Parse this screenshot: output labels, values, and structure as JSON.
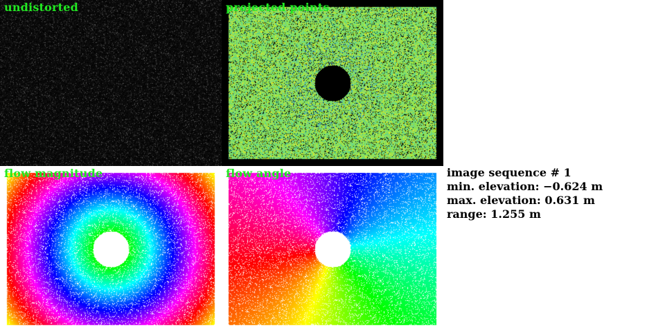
{
  "panels": {
    "undistorted": {
      "title": "undistorted"
    },
    "projected": {
      "title": "projected points"
    },
    "magnitude": {
      "title": "flow magnitude"
    },
    "angle": {
      "title": "flow angle"
    }
  },
  "info": {
    "sequence": "image sequence # 1",
    "min_elevation": "min. elevation: −0.624 m",
    "max_elevation": "max. elevation: 0.631 m",
    "range": "range: 1.255 m"
  },
  "colors": {
    "label": "#22e822",
    "background": "#000000"
  }
}
